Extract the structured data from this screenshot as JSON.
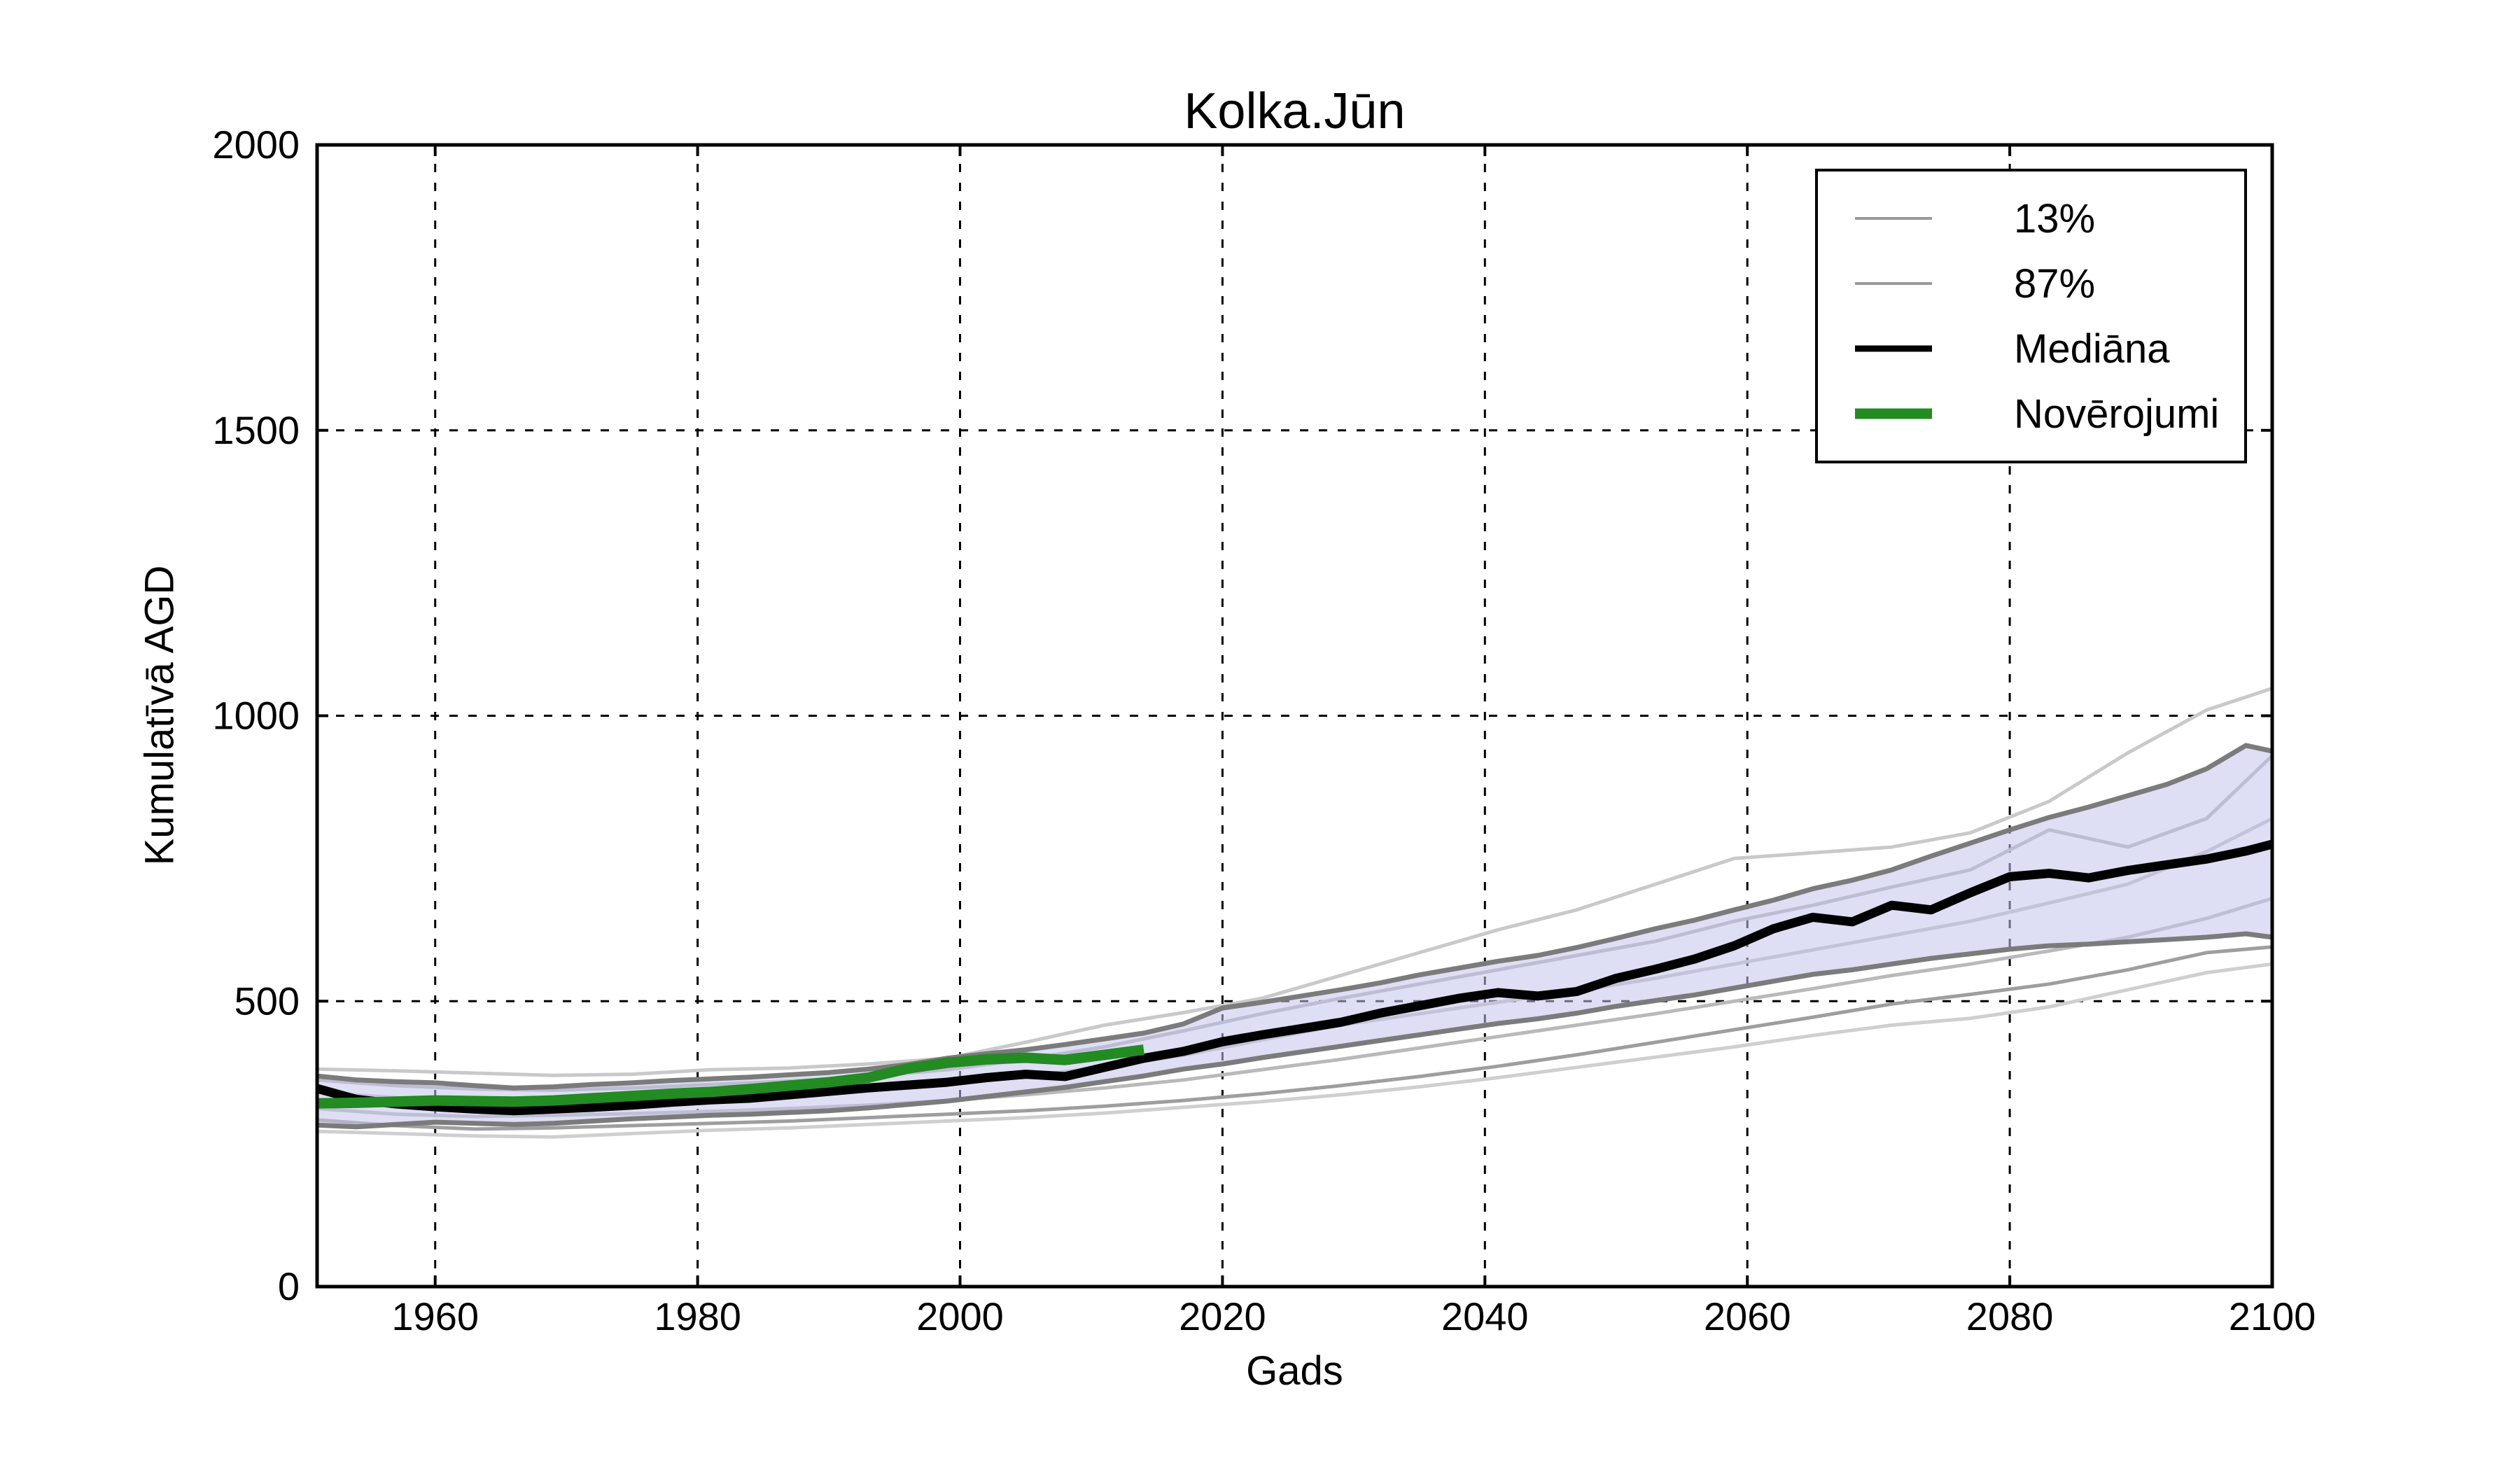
{
  "figure": {
    "title": "Kolka.Jūn",
    "xlabel": "Gads",
    "ylabel": "Kumulatīvā AGD",
    "background": "#ffffff",
    "spine_color": "#000000",
    "grid_color": "#000000"
  },
  "legend": {
    "items": [
      {
        "label": "13%",
        "color": "#999999",
        "stroke_width": "4"
      },
      {
        "label": "87%",
        "color": "#999999",
        "stroke_width": "4"
      },
      {
        "label": "Mediāna",
        "color": "#000000",
        "stroke_width": "9"
      },
      {
        "label": "Novērojumi",
        "color": "#228B22",
        "stroke_width": "15"
      }
    ]
  },
  "chart_data": {
    "type": "line",
    "title": "Kolka.Jūn",
    "xlabel": "Gads",
    "ylabel": "Kumulatīvā AGD",
    "xlim": [
      1951,
      2100
    ],
    "ylim": [
      0,
      2000
    ],
    "xticks": [
      1960,
      1980,
      2000,
      2020,
      2040,
      2060,
      2080,
      2100
    ],
    "yticks": [
      0,
      500,
      1000,
      1500,
      2000
    ],
    "grid": true,
    "legend_position": "upper right",
    "band": {
      "name": "13-87% interval",
      "fill": "rgba(195,195,235,0.55)",
      "edge_color": "#7b7b7b",
      "edge_width": 7,
      "years": [
        1951,
        1954,
        1957,
        1960,
        1963,
        1966,
        1969,
        1972,
        1975,
        1978,
        1981,
        1984,
        1987,
        1990,
        1993,
        1996,
        1999,
        2002,
        2005,
        2008,
        2011,
        2014,
        2017,
        2020,
        2023,
        2026,
        2029,
        2032,
        2035,
        2038,
        2041,
        2044,
        2047,
        2050,
        2053,
        2056,
        2059,
        2062,
        2065,
        2068,
        2071,
        2074,
        2077,
        2080,
        2083,
        2086,
        2089,
        2092,
        2095,
        2098,
        2100
      ],
      "low": [
        283,
        280,
        284,
        288,
        286,
        284,
        286,
        290,
        294,
        297,
        300,
        302,
        305,
        308,
        313,
        319,
        325,
        333,
        341,
        349,
        359,
        369,
        381,
        390,
        401,
        411,
        421,
        431,
        441,
        451,
        461,
        469,
        479,
        491,
        501,
        511,
        523,
        535,
        547,
        555,
        565,
        575,
        583,
        591,
        597,
        600,
        604,
        608,
        612,
        618,
        612
      ],
      "high": [
        369,
        362,
        359,
        357,
        352,
        348,
        350,
        354,
        357,
        361,
        364,
        367,
        371,
        375,
        381,
        389,
        400,
        408,
        415,
        424,
        434,
        444,
        460,
        488,
        498,
        509,
        520,
        532,
        546,
        558,
        570,
        580,
        594,
        610,
        627,
        642,
        660,
        677,
        697,
        712,
        730,
        754,
        777,
        800,
        822,
        840,
        860,
        880,
        907,
        948,
        938
      ]
    },
    "series": [
      {
        "name": "Mediāna",
        "color": "#000000",
        "width": 13,
        "years": [
          1951,
          1954,
          1957,
          1960,
          1963,
          1966,
          1969,
          1972,
          1975,
          1978,
          1981,
          1984,
          1987,
          1990,
          1993,
          1996,
          1999,
          2002,
          2005,
          2008,
          2011,
          2014,
          2017,
          2020,
          2023,
          2026,
          2029,
          2032,
          2035,
          2038,
          2041,
          2044,
          2047,
          2050,
          2053,
          2056,
          2059,
          2062,
          2065,
          2068,
          2071,
          2074,
          2077,
          2080,
          2083,
          2086,
          2089,
          2092,
          2095,
          2098,
          2100
        ],
        "values": [
          347,
          328,
          320,
          315,
          311,
          308,
          311,
          314,
          318,
          323,
          327,
          330,
          336,
          342,
          348,
          353,
          358,
          366,
          372,
          368,
          384,
          400,
          412,
          429,
          441,
          452,
          463,
          479,
          492,
          505,
          515,
          509,
          517,
          540,
          556,
          574,
          597,
          627,
          647,
          639,
          668,
          660,
          690,
          718,
          724,
          716,
          729,
          739,
          749,
          763,
          775
        ]
      },
      {
        "name": "Novērojumi",
        "color": "#228B22",
        "width": 15,
        "years": [
          1951,
          1954,
          1957,
          1960,
          1963,
          1966,
          1969,
          1972,
          1975,
          1978,
          1981,
          1984,
          1987,
          1990,
          1993,
          1996,
          1999,
          2002,
          2005,
          2008,
          2011,
          2014
        ],
        "values": [
          321,
          322,
          324,
          326,
          325,
          324,
          326,
          330,
          334,
          338,
          341,
          346,
          352,
          358,
          366,
          382,
          392,
          398,
          401,
          397,
          406,
          415
        ]
      }
    ],
    "ensemble_years": [
      1951,
      1957,
      1963,
      1969,
      1975,
      1981,
      1987,
      1993,
      1999,
      2005,
      2011,
      2017,
      2023,
      2029,
      2035,
      2041,
      2047,
      2053,
      2059,
      2065,
      2071,
      2077,
      2083,
      2089,
      2095,
      2100
    ],
    "ensemble": [
      {
        "name": "run-1",
        "color": "#c9c9c9",
        "width": 5,
        "values": [
          381,
          378,
          374,
          370,
          372,
          380,
          383,
          390,
          400,
          428,
          458,
          480,
          505,
          545,
          585,
          625,
          660,
          705,
          750,
          760,
          770,
          795,
          850,
          935,
          1010,
          1048
        ]
      },
      {
        "name": "run-2",
        "color": "#b3b3b3",
        "width": 5,
        "values": [
          362,
          352,
          346,
          344,
          348,
          354,
          360,
          368,
          380,
          398,
          420,
          448,
          478,
          505,
          530,
          555,
          580,
          605,
          640,
          668,
          700,
          730,
          800,
          770,
          820,
          930
        ]
      },
      {
        "name": "run-3",
        "color": "#c0c0c0",
        "width": 5,
        "values": [
          340,
          331,
          328,
          330,
          333,
          337,
          343,
          350,
          358,
          368,
          385,
          405,
          432,
          458,
          478,
          498,
          518,
          540,
          565,
          590,
          615,
          640,
          672,
          705,
          762,
          820
        ]
      },
      {
        "name": "run-4",
        "color": "#b9b9b9",
        "width": 5,
        "values": [
          312,
          302,
          298,
          300,
          303,
          307,
          312,
          318,
          326,
          336,
          348,
          362,
          380,
          398,
          418,
          438,
          458,
          478,
          500,
          522,
          545,
          565,
          588,
          612,
          645,
          680
        ]
      },
      {
        "name": "run-5",
        "color": "#9e9e9e",
        "width": 5,
        "values": [
          292,
          282,
          276,
          278,
          282,
          286,
          290,
          296,
          302,
          308,
          316,
          326,
          338,
          352,
          368,
          386,
          406,
          428,
          450,
          472,
          495,
          512,
          530,
          555,
          585,
          595
        ]
      },
      {
        "name": "run-6",
        "color": "#cfcfcf",
        "width": 5,
        "values": [
          272,
          268,
          264,
          262,
          268,
          274,
          278,
          284,
          290,
          296,
          304,
          314,
          324,
          336,
          350,
          366,
          384,
          402,
          420,
          440,
          458,
          470,
          490,
          520,
          550,
          565
        ]
      }
    ]
  }
}
